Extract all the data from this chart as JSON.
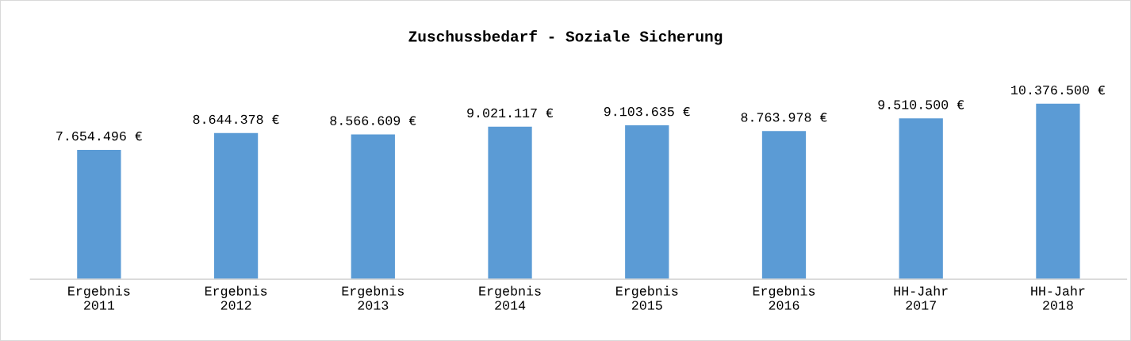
{
  "chart_data": {
    "type": "bar",
    "title": "Zuschussbedarf - Soziale Sicherung",
    "categories": [
      "Ergebnis\n2011",
      "Ergebnis\n2012",
      "Ergebnis\n2013",
      "Ergebnis\n2014",
      "Ergebnis\n2015",
      "Ergebnis\n2016",
      "HH-Jahr\n2017",
      "HH-Jahr\n2018"
    ],
    "values": [
      7654496,
      8644378,
      8566609,
      9021117,
      9103635,
      8763978,
      9510500,
      10376500
    ],
    "value_labels": [
      "7.654.496 €",
      "8.644.378 €",
      "8.566.609 €",
      "9.021.117 €",
      "9.103.635 €",
      "8.763.978 €",
      "9.510.500 €",
      "10.376.500 €"
    ],
    "color": "#5b9bd5"
  }
}
